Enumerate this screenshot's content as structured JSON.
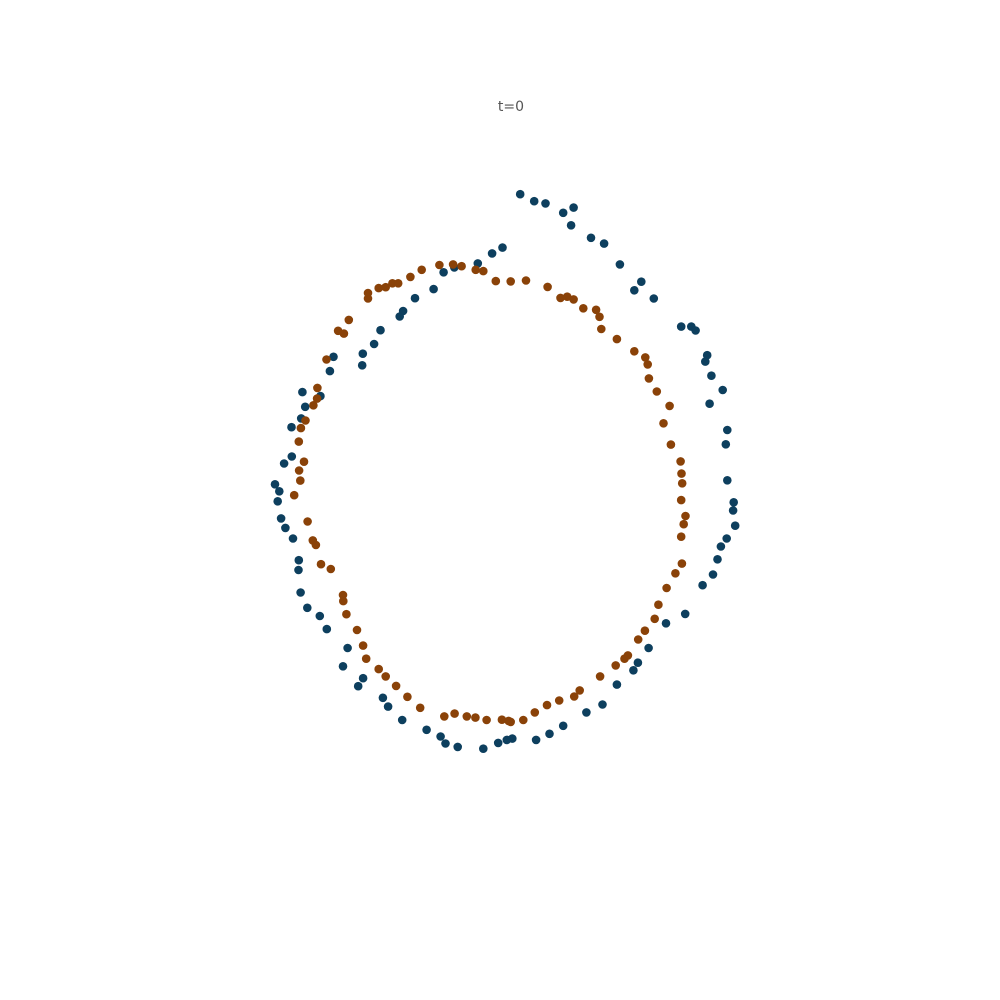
{
  "chart_data": {
    "type": "scatter",
    "title": "t=0",
    "xlabel": "",
    "ylabel": "",
    "xlim": [
      -1.3,
      1.3
    ],
    "ylim": [
      -1.3,
      1.3
    ],
    "grid": false,
    "axes_visible": false,
    "series": [
      {
        "color": "#0d3f5e",
        "points": [
          [
            0.04,
            1.019
          ],
          [
            0.086,
            0.996
          ],
          [
            0.123,
            0.989
          ],
          [
            0.215,
            0.975
          ],
          [
            0.181,
            0.958
          ],
          [
            0.207,
            0.917
          ],
          [
            0.272,
            0.876
          ],
          [
            0.315,
            0.857
          ],
          [
            0.367,
            0.789
          ],
          [
            0.437,
            0.732
          ],
          [
            0.414,
            0.704
          ],
          [
            0.478,
            0.677
          ],
          [
            0.568,
            0.585
          ],
          [
            0.601,
            0.585
          ],
          [
            0.615,
            0.572
          ],
          [
            0.653,
            0.491
          ],
          [
            0.647,
            0.47
          ],
          [
            0.667,
            0.424
          ],
          [
            0.704,
            0.377
          ],
          [
            0.661,
            0.332
          ],
          [
            0.719,
            0.246
          ],
          [
            0.714,
            0.199
          ],
          [
            0.719,
            0.081
          ],
          [
            0.74,
            0.009
          ],
          [
            0.738,
            -0.018
          ],
          [
            0.745,
            -0.068
          ],
          [
            0.717,
            -0.11
          ],
          [
            0.698,
            -0.136
          ],
          [
            0.687,
            -0.178
          ],
          [
            0.672,
            -0.228
          ],
          [
            0.638,
            -0.263
          ],
          [
            0.581,
            -0.357
          ],
          [
            0.518,
            -0.388
          ],
          [
            0.461,
            -0.469
          ],
          [
            0.426,
            -0.517
          ],
          [
            0.411,
            -0.542
          ],
          [
            0.357,
            -0.589
          ],
          [
            0.31,
            -0.654
          ],
          [
            0.257,
            -0.68
          ],
          [
            0.181,
            -0.724
          ],
          [
            0.136,
            -0.75
          ],
          [
            0.092,
            -0.77
          ],
          [
            0.014,
            -0.766
          ],
          [
            -0.004,
            -0.77
          ],
          [
            -0.032,
            -0.78
          ],
          [
            -0.081,
            -0.799
          ],
          [
            -0.165,
            -0.793
          ],
          [
            -0.205,
            -0.782
          ],
          [
            -0.221,
            -0.759
          ],
          [
            -0.267,
            -0.737
          ],
          [
            -0.347,
            -0.705
          ],
          [
            -0.393,
            -0.661
          ],
          [
            -0.41,
            -0.632
          ],
          [
            -0.491,
            -0.594
          ],
          [
            -0.475,
            -0.568
          ],
          [
            -0.541,
            -0.529
          ],
          [
            -0.526,
            -0.469
          ],
          [
            -0.594,
            -0.407
          ],
          [
            -0.617,
            -0.364
          ],
          [
            -0.658,
            -0.337
          ],
          [
            -0.68,
            -0.287
          ],
          [
            -0.687,
            -0.213
          ],
          [
            -0.686,
            -0.181
          ],
          [
            -0.705,
            -0.11
          ],
          [
            -0.73,
            -0.075
          ],
          [
            -0.744,
            -0.044
          ],
          [
            -0.755,
            0.012
          ],
          [
            -0.75,
            0.045
          ],
          [
            -0.764,
            0.068
          ],
          [
            -0.709,
            0.159
          ],
          [
            -0.734,
            0.136
          ],
          [
            -0.71,
            0.255
          ],
          [
            -0.678,
            0.284
          ],
          [
            -0.665,
            0.322
          ],
          [
            -0.674,
            0.37
          ],
          [
            -0.615,
            0.357
          ],
          [
            -0.584,
            0.439
          ],
          [
            -0.572,
            0.486
          ],
          [
            -0.476,
            0.496
          ],
          [
            -0.478,
            0.458
          ],
          [
            -0.439,
            0.528
          ],
          [
            -0.418,
            0.573
          ],
          [
            -0.355,
            0.618
          ],
          [
            -0.344,
            0.636
          ],
          [
            -0.305,
            0.678
          ],
          [
            -0.244,
            0.708
          ],
          [
            -0.211,
            0.763
          ],
          [
            -0.176,
            0.779
          ],
          [
            -0.099,
            0.792
          ],
          [
            -0.052,
            0.825
          ],
          [
            -0.018,
            0.844
          ]
        ]
      },
      {
        "color": "#8a4208",
        "points": [
          [
            0.059,
            0.736
          ],
          [
            0.13,
            0.715
          ],
          [
            0.172,
            0.679
          ],
          [
            0.194,
            0.683
          ],
          [
            0.215,
            0.674
          ],
          [
            0.247,
            0.645
          ],
          [
            0.289,
            0.64
          ],
          [
            0.3,
            0.617
          ],
          [
            0.306,
            0.577
          ],
          [
            0.357,
            0.544
          ],
          [
            0.414,
            0.504
          ],
          [
            0.45,
            0.484
          ],
          [
            0.458,
            0.461
          ],
          [
            0.462,
            0.415
          ],
          [
            0.488,
            0.372
          ],
          [
            0.53,
            0.325
          ],
          [
            0.51,
            0.268
          ],
          [
            0.534,
            0.198
          ],
          [
            0.566,
            0.143
          ],
          [
            0.569,
            0.103
          ],
          [
            0.571,
            0.071
          ],
          [
            0.568,
            0.016
          ],
          [
            0.582,
            -0.036
          ],
          [
            0.576,
            -0.063
          ],
          [
            0.568,
            -0.104
          ],
          [
            0.57,
            -0.192
          ],
          [
            0.549,
            -0.224
          ],
          [
            0.52,
            -0.272
          ],
          [
            0.493,
            -0.327
          ],
          [
            0.481,
            -0.373
          ],
          [
            0.449,
            -0.412
          ],
          [
            0.427,
            -0.441
          ],
          [
            0.393,
            -0.493
          ],
          [
            0.382,
            -0.504
          ],
          [
            0.353,
            -0.526
          ],
          [
            0.302,
            -0.562
          ],
          [
            0.235,
            -0.608
          ],
          [
            0.217,
            -0.628
          ],
          [
            0.168,
            -0.641
          ],
          [
            0.128,
            -0.656
          ],
          [
            0.088,
            -0.68
          ],
          [
            0.05,
            -0.705
          ],
          [
            0.009,
            -0.711
          ],
          [
            0.002,
            -0.708
          ],
          [
            -0.02,
            -0.704
          ],
          [
            -0.07,
            -0.705
          ],
          [
            -0.107,
            -0.697
          ],
          [
            -0.135,
            -0.693
          ],
          [
            -0.175,
            -0.684
          ],
          [
            -0.209,
            -0.693
          ],
          [
            -0.288,
            -0.665
          ],
          [
            -0.33,
            -0.629
          ],
          [
            -0.367,
            -0.593
          ],
          [
            -0.401,
            -0.562
          ],
          [
            -0.424,
            -0.538
          ],
          [
            -0.465,
            -0.504
          ],
          [
            -0.475,
            -0.461
          ],
          [
            -0.495,
            -0.41
          ],
          [
            -0.53,
            -0.358
          ],
          [
            -0.54,
            -0.315
          ],
          [
            -0.541,
            -0.295
          ],
          [
            -0.581,
            -0.21
          ],
          [
            -0.613,
            -0.194
          ],
          [
            -0.63,
            -0.131
          ],
          [
            -0.64,
            -0.116
          ],
          [
            -0.657,
            -0.054
          ],
          [
            -0.701,
            0.032
          ],
          [
            -0.681,
            0.08
          ],
          [
            -0.685,
            0.113
          ],
          [
            -0.669,
            0.142
          ],
          [
            -0.686,
            0.208
          ],
          [
            -0.679,
            0.252
          ],
          [
            -0.664,
            0.277
          ],
          [
            -0.638,
            0.327
          ],
          [
            -0.626,
            0.349
          ],
          [
            -0.625,
            0.384
          ],
          [
            -0.595,
            0.477
          ],
          [
            -0.557,
            0.571
          ],
          [
            -0.538,
            0.562
          ],
          [
            -0.522,
            0.607
          ],
          [
            -0.459,
            0.677
          ],
          [
            -0.459,
            0.695
          ],
          [
            -0.424,
            0.711
          ],
          [
            -0.401,
            0.714
          ],
          [
            -0.379,
            0.727
          ],
          [
            -0.36,
            0.727
          ],
          [
            -0.32,
            0.748
          ],
          [
            -0.283,
            0.771
          ],
          [
            -0.225,
            0.787
          ],
          [
            -0.18,
            0.789
          ],
          [
            -0.152,
            0.783
          ],
          [
            -0.106,
            0.771
          ],
          [
            -0.081,
            0.767
          ],
          [
            -0.04,
            0.734
          ],
          [
            0.009,
            0.733
          ]
        ]
      }
    ]
  }
}
